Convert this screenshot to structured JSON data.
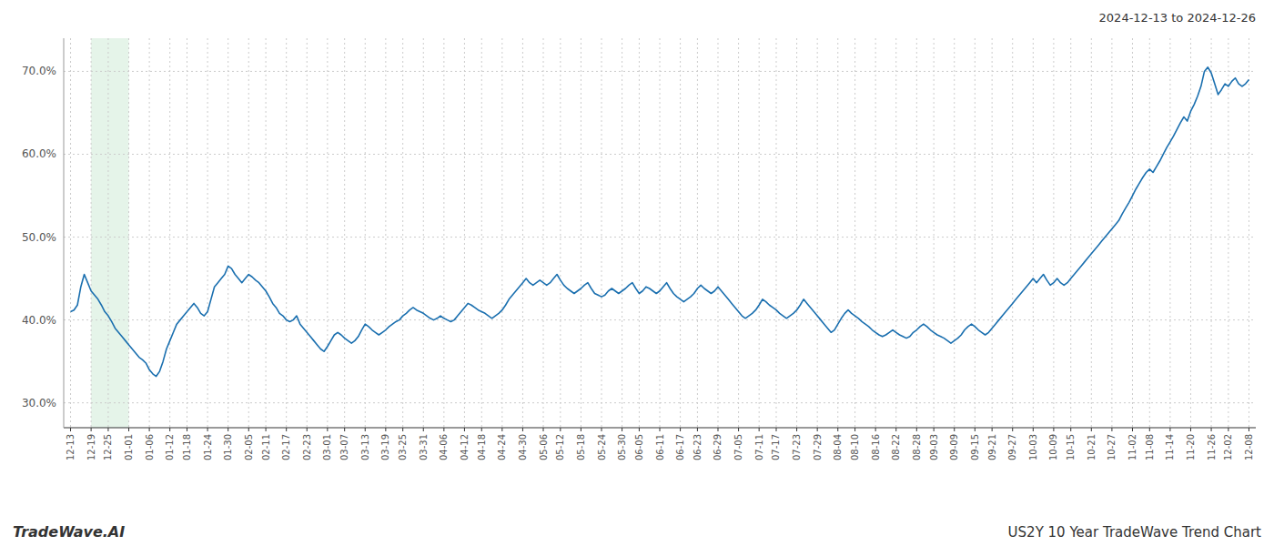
{
  "chart_data": {
    "type": "line",
    "title": "US2Y 10 Year TradeWave Trend Chart",
    "subtitle": "2024-12-13 to 2024-12-26",
    "annotations": [
      "TradeWave.AI"
    ],
    "color": "#1a6faf",
    "grid": true,
    "shade": {
      "from": "12-19",
      "to": "01-01",
      "color": "#d4edda"
    },
    "ylim": [
      27.0,
      74.0
    ],
    "yticks": [
      {
        "value": 30.0,
        "label": "30.0%"
      },
      {
        "value": 40.0,
        "label": "40.0%"
      },
      {
        "value": 50.0,
        "label": "50.0%"
      },
      {
        "value": 60.0,
        "label": "60.0%"
      },
      {
        "value": 70.0,
        "label": "70.0%"
      }
    ],
    "categories": [
      "12-13",
      null,
      null,
      null,
      null,
      null,
      "12-19",
      null,
      null,
      null,
      null,
      "12-25",
      null,
      null,
      null,
      null,
      null,
      "01-01",
      null,
      null,
      null,
      null,
      null,
      "01-06",
      null,
      null,
      null,
      null,
      null,
      "01-12",
      null,
      null,
      null,
      null,
      "01-18",
      null,
      null,
      null,
      null,
      null,
      "01-24",
      null,
      null,
      null,
      null,
      null,
      "01-30",
      null,
      null,
      null,
      null,
      null,
      "02-05",
      null,
      null,
      null,
      null,
      "02-11",
      null,
      null,
      null,
      null,
      null,
      "02-17",
      null,
      null,
      null,
      null,
      null,
      "02-23",
      null,
      null,
      null,
      null,
      null,
      "03-01",
      null,
      null,
      null,
      null,
      "03-07",
      null,
      null,
      null,
      null,
      null,
      "03-13",
      null,
      null,
      null,
      null,
      null,
      "03-19",
      null,
      null,
      null,
      null,
      "03-25",
      null,
      null,
      null,
      null,
      null,
      "03-31",
      null,
      null,
      null,
      null,
      null,
      "04-06",
      null,
      null,
      null,
      null,
      null,
      "04-12",
      null,
      null,
      null,
      null,
      "04-18",
      null,
      null,
      null,
      null,
      null,
      "04-24",
      null,
      null,
      null,
      null,
      null,
      "04-30",
      null,
      null,
      null,
      null,
      null,
      "05-06",
      null,
      null,
      null,
      null,
      "05-12",
      null,
      null,
      null,
      null,
      null,
      "05-18",
      null,
      null,
      null,
      null,
      null,
      "05-24",
      null,
      null,
      null,
      null,
      null,
      "05-30",
      null,
      null,
      null,
      null,
      "06-05",
      null,
      null,
      null,
      null,
      null,
      "06-11",
      null,
      null,
      null,
      null,
      null,
      "06-17",
      null,
      null,
      null,
      null,
      "06-23",
      null,
      null,
      null,
      null,
      null,
      "06-29",
      null,
      null,
      null,
      null,
      null,
      "07-05",
      null,
      null,
      null,
      null,
      null,
      "07-11",
      null,
      null,
      null,
      null,
      "07-17",
      null,
      null,
      null,
      null,
      null,
      "07-23",
      null,
      null,
      null,
      null,
      null,
      "07-29",
      null,
      null,
      null,
      null,
      null,
      "08-04",
      null,
      null,
      null,
      null,
      "08-10",
      null,
      null,
      null,
      null,
      null,
      "08-16",
      null,
      null,
      null,
      null,
      null,
      "08-22",
      null,
      null,
      null,
      null,
      null,
      "08-28",
      null,
      null,
      null,
      null,
      "09-03",
      null,
      null,
      null,
      null,
      null,
      "09-09",
      null,
      null,
      null,
      null,
      null,
      "09-15",
      null,
      null,
      null,
      null,
      "09-21",
      null,
      null,
      null,
      null,
      null,
      "09-27",
      null,
      null,
      null,
      null,
      null,
      "10-03",
      null,
      null,
      null,
      null,
      null,
      "10-09",
      null,
      null,
      null,
      null,
      "10-15",
      null,
      null,
      null,
      null,
      null,
      "10-21",
      null,
      null,
      null,
      null,
      null,
      "10-27",
      null,
      null,
      null,
      null,
      null,
      "11-02",
      null,
      null,
      null,
      null,
      "11-08",
      null,
      null,
      null,
      null,
      null,
      "11-14",
      null,
      null,
      null,
      null,
      null,
      "11-20",
      null,
      null,
      null,
      null,
      null,
      "11-26",
      null,
      null,
      null,
      null,
      "12-02",
      null,
      null,
      null,
      null,
      null,
      "12-08"
    ],
    "values": [
      41.0,
      41.2,
      41.8,
      44.0,
      45.5,
      44.5,
      43.5,
      43.0,
      42.5,
      41.8,
      41.0,
      40.5,
      39.8,
      39.0,
      38.5,
      38.0,
      37.5,
      37.0,
      36.5,
      36.0,
      35.5,
      35.2,
      34.8,
      34.0,
      33.5,
      33.2,
      33.8,
      35.0,
      36.5,
      37.5,
      38.5,
      39.5,
      40.0,
      40.5,
      41.0,
      41.5,
      42.0,
      41.5,
      40.8,
      40.5,
      41.0,
      42.5,
      44.0,
      44.5,
      45.0,
      45.5,
      46.5,
      46.2,
      45.5,
      45.0,
      44.5,
      45.0,
      45.5,
      45.2,
      44.8,
      44.5,
      44.0,
      43.5,
      42.8,
      42.0,
      41.5,
      40.8,
      40.5,
      40.0,
      39.8,
      40.0,
      40.5,
      39.5,
      39.0,
      38.5,
      38.0,
      37.5,
      37.0,
      36.5,
      36.2,
      36.8,
      37.5,
      38.2,
      38.5,
      38.2,
      37.8,
      37.5,
      37.2,
      37.5,
      38.0,
      38.8,
      39.5,
      39.2,
      38.8,
      38.5,
      38.2,
      38.5,
      38.8,
      39.2,
      39.5,
      39.8,
      40.0,
      40.5,
      40.8,
      41.2,
      41.5,
      41.2,
      41.0,
      40.8,
      40.5,
      40.2,
      40.0,
      40.2,
      40.5,
      40.2,
      40.0,
      39.8,
      40.0,
      40.5,
      41.0,
      41.5,
      42.0,
      41.8,
      41.5,
      41.2,
      41.0,
      40.8,
      40.5,
      40.2,
      40.5,
      40.8,
      41.2,
      41.8,
      42.5,
      43.0,
      43.5,
      44.0,
      44.5,
      45.0,
      44.5,
      44.2,
      44.5,
      44.8,
      44.5,
      44.2,
      44.5,
      45.0,
      45.5,
      44.8,
      44.2,
      43.8,
      43.5,
      43.2,
      43.5,
      43.8,
      44.2,
      44.5,
      43.8,
      43.2,
      43.0,
      42.8,
      43.0,
      43.5,
      43.8,
      43.5,
      43.2,
      43.5,
      43.8,
      44.2,
      44.5,
      43.8,
      43.2,
      43.5,
      44.0,
      43.8,
      43.5,
      43.2,
      43.5,
      44.0,
      44.5,
      43.8,
      43.2,
      42.8,
      42.5,
      42.2,
      42.5,
      42.8,
      43.2,
      43.8,
      44.2,
      43.8,
      43.5,
      43.2,
      43.5,
      44.0,
      43.5,
      43.0,
      42.5,
      42.0,
      41.5,
      41.0,
      40.5,
      40.2,
      40.5,
      40.8,
      41.2,
      41.8,
      42.5,
      42.2,
      41.8,
      41.5,
      41.2,
      40.8,
      40.5,
      40.2,
      40.5,
      40.8,
      41.2,
      41.8,
      42.5,
      42.0,
      41.5,
      41.0,
      40.5,
      40.0,
      39.5,
      39.0,
      38.5,
      38.8,
      39.5,
      40.2,
      40.8,
      41.2,
      40.8,
      40.5,
      40.2,
      39.8,
      39.5,
      39.2,
      38.8,
      38.5,
      38.2,
      38.0,
      38.2,
      38.5,
      38.8,
      38.5,
      38.2,
      38.0,
      37.8,
      38.0,
      38.5,
      38.8,
      39.2,
      39.5,
      39.2,
      38.8,
      38.5,
      38.2,
      38.0,
      37.8,
      37.5,
      37.2,
      37.5,
      37.8,
      38.2,
      38.8,
      39.2,
      39.5,
      39.2,
      38.8,
      38.5,
      38.2,
      38.5,
      39.0,
      39.5,
      40.0,
      40.5,
      41.0,
      41.5,
      42.0,
      42.5,
      43.0,
      43.5,
      44.0,
      44.5,
      45.0,
      44.5,
      45.0,
      45.5,
      44.8,
      44.2,
      44.5,
      45.0,
      44.5,
      44.2,
      44.5,
      45.0,
      45.5,
      46.0,
      46.5,
      47.0,
      47.5,
      48.0,
      48.5,
      49.0,
      49.5,
      50.0,
      50.5,
      51.0,
      51.5,
      52.0,
      52.8,
      53.5,
      54.2,
      55.0,
      55.8,
      56.5,
      57.2,
      57.8,
      58.2,
      57.8,
      58.5,
      59.2,
      60.0,
      60.8,
      61.5,
      62.2,
      63.0,
      63.8,
      64.5,
      64.0,
      65.2,
      66.0,
      67.0,
      68.2,
      70.0,
      70.5,
      69.8,
      68.5,
      67.2,
      67.8,
      68.5,
      68.2,
      68.8,
      69.2,
      68.5,
      68.2,
      68.5,
      69.0
    ]
  }
}
